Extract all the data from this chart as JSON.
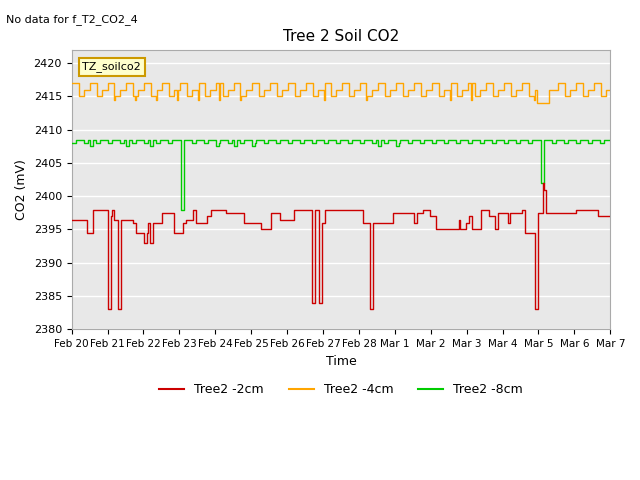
{
  "title": "Tree 2 Soil CO2",
  "no_data_text": "No data for f_T2_CO2_4",
  "xlabel": "Time",
  "ylabel": "CO2 (mV)",
  "ylim": [
    2380,
    2422
  ],
  "yticks": [
    2380,
    2385,
    2390,
    2395,
    2400,
    2405,
    2410,
    2415,
    2420
  ],
  "bg_color": "#e8e8e8",
  "grid_color": "white",
  "legend_labels": [
    "Tree2 -2cm",
    "Tree2 -4cm",
    "Tree2 -8cm"
  ],
  "legend_colors": [
    "#cc0000",
    "#ffa500",
    "#00cc00"
  ],
  "annotation_label": "TZ_soilco2",
  "figsize": [
    6.4,
    4.8
  ],
  "dpi": 100
}
